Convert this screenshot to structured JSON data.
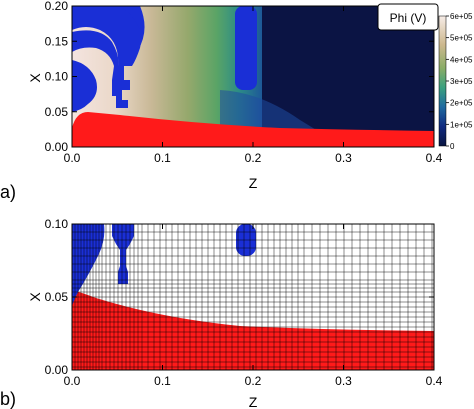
{
  "panels": [
    {
      "label": "a)",
      "xlabel": "Z",
      "ylabel": "X",
      "xlim": [
        0.0,
        0.4
      ],
      "ylim": [
        0.0,
        0.2
      ],
      "xticks": [
        "0.0",
        "0.1",
        "0.2",
        "0.3",
        "0.4"
      ],
      "yticks": [
        "0.00",
        "0.05",
        "0.10",
        "0.15",
        "0.20"
      ],
      "colorbar": {
        "title": "Phi (V)",
        "ticks": [
          "0",
          "1e+05",
          "2e+05",
          "3e+05",
          "4e+05",
          "5e+05",
          "6e+05"
        ]
      }
    },
    {
      "label": "b)",
      "xlabel": "Z",
      "ylabel": "X",
      "xlim": [
        0.0,
        0.4
      ],
      "ylim": [
        0.0,
        0.1
      ],
      "xticks": [
        "0.0",
        "0.1",
        "0.2",
        "0.3",
        "0.4"
      ],
      "yticks": [
        "0.00",
        "0.05",
        "0.10"
      ]
    }
  ],
  "colors": {
    "electrode": "#1a2fd6",
    "dielectric": "#ff1a1a",
    "grid": "#000000"
  }
}
